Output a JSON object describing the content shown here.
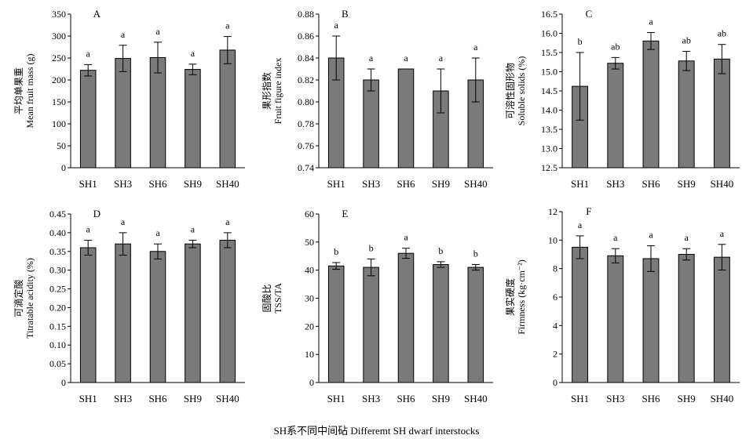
{
  "figure": {
    "x_caption": "SH系不同中间砧 Differemt SH dwarf interstocks"
  },
  "colors": {
    "bar_fill": "#7a7a7a",
    "axis": "#000000",
    "background": "#ffffff"
  },
  "chart_data": [
    {
      "type": "bar",
      "panel_label": "A",
      "categories": [
        "SH1",
        "SH3",
        "SH6",
        "SH9",
        "SH40"
      ],
      "values": [
        222,
        249,
        251,
        224,
        268
      ],
      "errors": [
        13,
        30,
        35,
        12,
        31
      ],
      "significance": [
        "a",
        "a",
        "a",
        "a",
        "a"
      ],
      "ylabel_cn": "平均单果重",
      "ylabel_en": "Mean fruit mass (g)",
      "ylim": [
        0,
        350
      ],
      "yticks": [
        0,
        50,
        100,
        150,
        200,
        250,
        300,
        350
      ],
      "ytick_labels": [
        "0",
        "50",
        "100",
        "150",
        "200",
        "250",
        "300",
        "350"
      ]
    },
    {
      "type": "bar",
      "panel_label": "B",
      "categories": [
        "SH1",
        "SH3",
        "SH6",
        "SH9",
        "SH40"
      ],
      "values": [
        0.84,
        0.82,
        0.83,
        0.81,
        0.82
      ],
      "errors": [
        0.02,
        0.01,
        0,
        0.02,
        0.02
      ],
      "significance": [
        "a",
        "a",
        "a",
        "a",
        "a"
      ],
      "ylabel_cn": "果形指数",
      "ylabel_en": "Fruit figure index",
      "ylim": [
        0.74,
        0.88
      ],
      "yticks": [
        0.74,
        0.76,
        0.78,
        0.8,
        0.82,
        0.84,
        0.86,
        0.88
      ],
      "ytick_labels": [
        "0.74",
        "0.76",
        "0.78",
        "0.80",
        "0.82",
        "0.84",
        "0.86",
        "0.88"
      ]
    },
    {
      "type": "bar",
      "panel_label": "C",
      "categories": [
        "SH1",
        "SH3",
        "SH6",
        "SH9",
        "SH40"
      ],
      "values": [
        14.62,
        15.22,
        15.8,
        15.28,
        15.33
      ],
      "errors": [
        0.88,
        0.15,
        0.22,
        0.25,
        0.38
      ],
      "significance": [
        "b",
        "ab",
        "a",
        "ab",
        "ab"
      ],
      "ylabel_cn": "可溶性固形物",
      "ylabel_en": "Soluble solids (%)",
      "ylim": [
        12.5,
        16.5
      ],
      "yticks": [
        12.5,
        13.0,
        13.5,
        14.0,
        14.5,
        15.0,
        15.5,
        16.0,
        16.5
      ],
      "ytick_labels": [
        "12.5",
        "13.0",
        "13.5",
        "14.0",
        "14.5",
        "15.0",
        "15.5",
        "16.0",
        "16.5"
      ]
    },
    {
      "type": "bar",
      "panel_label": "D",
      "categories": [
        "SH1",
        "SH3",
        "SH6",
        "SH9",
        "SH40"
      ],
      "values": [
        0.36,
        0.37,
        0.35,
        0.37,
        0.38
      ],
      "errors": [
        0.02,
        0.03,
        0.02,
        0.01,
        0.02
      ],
      "significance": [
        "a",
        "a",
        "a",
        "a",
        "a"
      ],
      "ylabel_cn": "可滴定酸",
      "ylabel_en": "Titratable acidity (%)",
      "ylim": [
        0,
        0.45
      ],
      "yticks": [
        0,
        0.05,
        0.1,
        0.15,
        0.2,
        0.25,
        0.3,
        0.35,
        0.4,
        0.45
      ],
      "ytick_labels": [
        "0",
        "0.05",
        "0.10",
        "0.15",
        "0.20",
        "0.25",
        "0.30",
        "0.35",
        "0.40",
        "0.45"
      ]
    },
    {
      "type": "bar",
      "panel_label": "E",
      "categories": [
        "SH1",
        "SH3",
        "SH6",
        "SH9",
        "SH40"
      ],
      "values": [
        41.5,
        41,
        46,
        42,
        41
      ],
      "errors": [
        1.2,
        3,
        1.8,
        1,
        1
      ],
      "significance": [
        "b",
        "b",
        "a",
        "b",
        "b"
      ],
      "ylabel_cn": "固酸比",
      "ylabel_en": "TSS/TA",
      "ylim": [
        0,
        60
      ],
      "yticks": [
        0,
        10,
        20,
        30,
        40,
        50,
        60
      ],
      "ytick_labels": [
        "0",
        "10",
        "20",
        "30",
        "40",
        "50",
        "60"
      ]
    },
    {
      "type": "bar",
      "panel_label": "F",
      "categories": [
        "SH1",
        "SH3",
        "SH6",
        "SH9",
        "SH40"
      ],
      "values": [
        9.5,
        8.9,
        8.7,
        9.0,
        8.8
      ],
      "errors": [
        0.8,
        0.5,
        0.9,
        0.4,
        0.9
      ],
      "significance": [
        "a",
        "a",
        "a",
        "a",
        "a"
      ],
      "ylabel_cn": "果实硬度",
      "ylabel_en": "Firmness (kg·cm⁻²)",
      "ylim": [
        0,
        12
      ],
      "yticks": [
        0,
        2,
        4,
        6,
        8,
        10,
        12
      ],
      "ytick_labels": [
        "0",
        "2",
        "4",
        "6",
        "8",
        "10",
        "12"
      ]
    }
  ]
}
